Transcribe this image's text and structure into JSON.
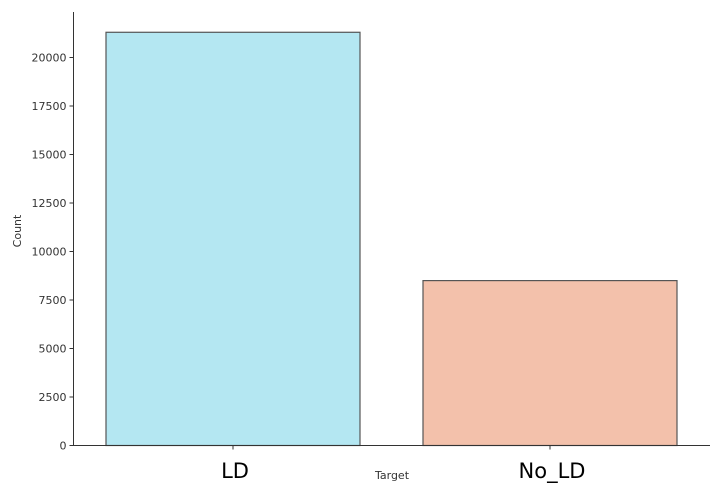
{
  "chart_data": {
    "type": "bar",
    "categories": [
      "LD",
      "No_LD"
    ],
    "values": [
      21300,
      8500
    ],
    "title": "",
    "xlabel": "Target",
    "ylabel": "Count",
    "ylim": [
      0,
      22500
    ],
    "yticks": [
      0,
      2500,
      5000,
      7500,
      10000,
      12500,
      15000,
      17500,
      20000
    ],
    "colors": [
      "#b4e7f2",
      "#f3c1ab"
    ],
    "edge_color": "#555555",
    "grid": false,
    "legend": "none"
  }
}
